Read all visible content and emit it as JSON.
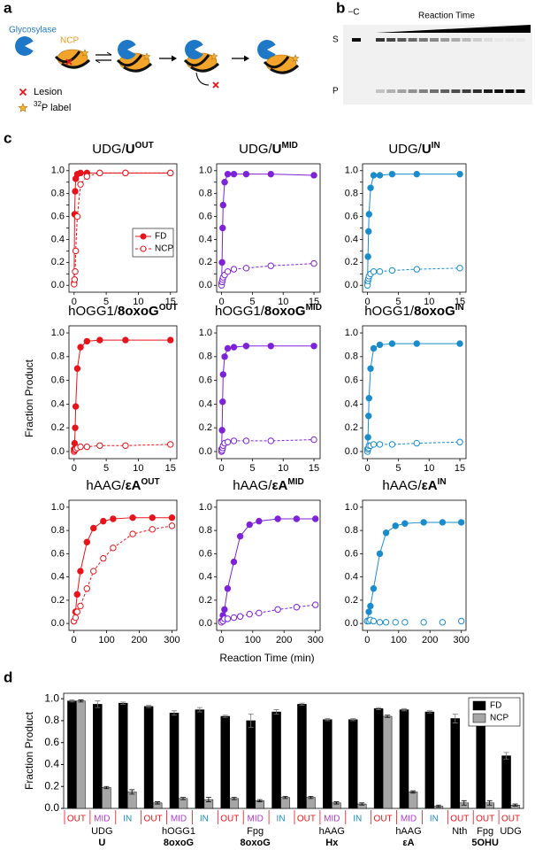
{
  "panel_a": {
    "label": "a",
    "enzyme": "Glycosylase",
    "substrate": "NCP",
    "legend": {
      "lesion": "Lesion",
      "isotope": "32",
      "label": "P label"
    }
  },
  "panel_b": {
    "label": "b",
    "control": "−C",
    "time": "Reaction Time",
    "substrate": "S",
    "product": "P"
  },
  "panel_c": {
    "label": "c",
    "ylabel": "Fraction Product",
    "xlabel": "Reaction Time (min)"
  },
  "panel_d": {
    "label": "d"
  },
  "chart_data": [
    {
      "type": "line",
      "title": {
        "prefix": "UDG/",
        "lesion": "U",
        "position": "OUT"
      },
      "color": "#e8141b",
      "x": [
        0,
        0.08,
        0.17,
        0.25,
        0.5,
        1,
        2,
        4,
        8,
        15
      ],
      "xlim": [
        -0.8,
        16
      ],
      "xticks": [
        0,
        5,
        10,
        15
      ],
      "ylim": [
        -0.06,
        1.06
      ],
      "yticks": [
        {
          "value": 0,
          "label": "0.0"
        },
        {
          "value": 0.1,
          "label": "0.1"
        },
        {
          "value": 0.2,
          "label": "0.2"
        },
        {
          "value": 0.3,
          "label": "0.3"
        },
        {
          "value": 0.4,
          "label": "0.4"
        },
        {
          "value": 0.5,
          "label": "0.5"
        },
        {
          "value": 0.6,
          "label": "0.6"
        },
        {
          "value": 0.7,
          "label": "0.7"
        },
        {
          "value": 0.8,
          "label": "0.8"
        },
        {
          "value": 0.9,
          "label": "0.9"
        },
        {
          "value": 1,
          "label": "1.0"
        }
      ],
      "legend": "lower right",
      "series": [
        {
          "name": "FD",
          "marker": "filled",
          "linestyle": "solid",
          "values": [
            0.02,
            0.62,
            0.82,
            0.93,
            0.97,
            0.98,
            0.98,
            0.98,
            0.98,
            0.98
          ]
        },
        {
          "name": "NCP",
          "marker": "open",
          "linestyle": "dashed",
          "values": [
            0.01,
            0.05,
            0.12,
            0.3,
            0.6,
            0.88,
            0.95,
            0.98,
            0.98,
            0.98
          ]
        }
      ]
    },
    {
      "type": "line",
      "title": {
        "prefix": "UDG/",
        "lesion": "U",
        "position": "MID"
      },
      "color": "#7d22d8",
      "x": [
        0,
        0.08,
        0.17,
        0.25,
        0.5,
        1,
        2,
        4,
        8,
        15
      ],
      "xlim": [
        -0.8,
        16
      ],
      "xticks": [
        0,
        5,
        10,
        15
      ],
      "ylim": [
        -0.06,
        1.06
      ],
      "yticks": [
        {
          "value": 0,
          "label": "0.0"
        },
        {
          "value": 0.1,
          "label": "0.1"
        },
        {
          "value": 0.2,
          "label": "0.2"
        },
        {
          "value": 0.3,
          "label": "0.3"
        },
        {
          "value": 0.4,
          "label": "0.4"
        },
        {
          "value": 0.5,
          "label": "0.5"
        },
        {
          "value": 0.6,
          "label": "0.6"
        },
        {
          "value": 0.7,
          "label": "0.7"
        },
        {
          "value": 0.8,
          "label": "0.8"
        },
        {
          "value": 0.9,
          "label": "0.9"
        },
        {
          "value": 1,
          "label": "1.0"
        }
      ],
      "series": [
        {
          "marker": "filled",
          "linestyle": "solid",
          "values": [
            0.02,
            0.2,
            0.5,
            0.7,
            0.9,
            0.97,
            0.97,
            0.97,
            0.97,
            0.96
          ]
        },
        {
          "marker": "open",
          "linestyle": "dashed",
          "values": [
            0,
            0.03,
            0.05,
            0.07,
            0.09,
            0.12,
            0.14,
            0.15,
            0.17,
            0.19
          ]
        }
      ]
    },
    {
      "type": "line",
      "title": {
        "prefix": "UDG/",
        "lesion": "U",
        "position": "IN"
      },
      "color": "#1a8ccc",
      "x": [
        0,
        0.08,
        0.17,
        0.25,
        0.5,
        1,
        2,
        4,
        8,
        15
      ],
      "xlim": [
        -0.8,
        16
      ],
      "xticks": [
        0,
        5,
        10,
        15
      ],
      "ylim": [
        -0.06,
        1.06
      ],
      "yticks": [
        {
          "value": 0,
          "label": "0.0"
        },
        {
          "value": 0.1,
          "label": "0.1"
        },
        {
          "value": 0.2,
          "label": "0.2"
        },
        {
          "value": 0.3,
          "label": "0.3"
        },
        {
          "value": 0.4,
          "label": "0.4"
        },
        {
          "value": 0.5,
          "label": "0.5"
        },
        {
          "value": 0.6,
          "label": "0.6"
        },
        {
          "value": 0.7,
          "label": "0.7"
        },
        {
          "value": 0.8,
          "label": "0.8"
        },
        {
          "value": 0.9,
          "label": "0.9"
        },
        {
          "value": 1,
          "label": "1.0"
        }
      ],
      "series": [
        {
          "marker": "filled",
          "linestyle": "solid",
          "values": [
            0.03,
            0.25,
            0.47,
            0.62,
            0.85,
            0.96,
            0.96,
            0.97,
            0.97,
            0.97
          ]
        },
        {
          "marker": "open",
          "linestyle": "dashed",
          "values": [
            0,
            0.04,
            0.06,
            0.08,
            0.1,
            0.12,
            0.12,
            0.13,
            0.14,
            0.15
          ]
        }
      ]
    },
    {
      "type": "line",
      "title": {
        "prefix": "hOGG1/",
        "lesion": "8oxoG",
        "position": "OUT"
      },
      "color": "#e8141b",
      "x": [
        0,
        0.08,
        0.17,
        0.25,
        0.5,
        1,
        2,
        4,
        8,
        15
      ],
      "xlim": [
        -0.8,
        16
      ],
      "xticks": [
        0,
        5,
        10,
        15
      ],
      "ylim": [
        -0.06,
        1.06
      ],
      "yticks": [
        {
          "value": 0,
          "label": "0.0"
        },
        {
          "value": 0.2,
          "label": "0.2"
        },
        {
          "value": 0.4,
          "label": "0.4"
        },
        {
          "value": 0.6,
          "label": "0.6"
        },
        {
          "value": 0.8,
          "label": "0.8"
        },
        {
          "value": 1,
          "label": "1.0"
        }
      ],
      "series": [
        {
          "marker": "filled",
          "linestyle": "solid",
          "values": [
            0.02,
            0.07,
            0.2,
            0.38,
            0.7,
            0.88,
            0.93,
            0.94,
            0.94,
            0.94
          ]
        },
        {
          "marker": "open",
          "linestyle": "dashed",
          "values": [
            0,
            0.01,
            0.02,
            0.02,
            0.03,
            0.04,
            0.04,
            0.05,
            0.05,
            0.06
          ]
        }
      ]
    },
    {
      "type": "line",
      "title": {
        "prefix": "hOGG1/",
        "lesion": "8oxoG",
        "position": "MID"
      },
      "color": "#7d22d8",
      "x": [
        0,
        0.08,
        0.17,
        0.25,
        0.5,
        1,
        2,
        4,
        8,
        15
      ],
      "xlim": [
        -0.8,
        16
      ],
      "xticks": [
        0,
        5,
        10,
        15
      ],
      "ylim": [
        -0.06,
        1.06
      ],
      "yticks": [
        {
          "value": 0,
          "label": "0.0"
        },
        {
          "value": 0.2,
          "label": "0.2"
        },
        {
          "value": 0.4,
          "label": "0.4"
        },
        {
          "value": 0.6,
          "label": "0.6"
        },
        {
          "value": 0.8,
          "label": "0.8"
        },
        {
          "value": 1,
          "label": "1.0"
        }
      ],
      "series": [
        {
          "marker": "filled",
          "linestyle": "solid",
          "values": [
            0.02,
            0.18,
            0.42,
            0.65,
            0.8,
            0.87,
            0.88,
            0.89,
            0.89,
            0.89
          ]
        },
        {
          "marker": "open",
          "linestyle": "dashed",
          "values": [
            0,
            0.01,
            0.03,
            0.05,
            0.07,
            0.08,
            0.09,
            0.09,
            0.09,
            0.1
          ]
        }
      ]
    },
    {
      "type": "line",
      "title": {
        "prefix": "hOGG1/",
        "lesion": "8oxoG",
        "position": "IN"
      },
      "color": "#1a8ccc",
      "x": [
        0,
        0.08,
        0.17,
        0.25,
        0.5,
        1,
        2,
        4,
        8,
        15
      ],
      "xlim": [
        -0.8,
        16
      ],
      "xticks": [
        0,
        5,
        10,
        15
      ],
      "ylim": [
        -0.06,
        1.06
      ],
      "yticks": [
        {
          "value": 0,
          "label": "0.0"
        },
        {
          "value": 0.2,
          "label": "0.2"
        },
        {
          "value": 0.4,
          "label": "0.4"
        },
        {
          "value": 0.6,
          "label": "0.6"
        },
        {
          "value": 0.8,
          "label": "0.8"
        },
        {
          "value": 1,
          "label": "1.0"
        }
      ],
      "series": [
        {
          "marker": "filled",
          "linestyle": "solid",
          "values": [
            0.02,
            0.12,
            0.3,
            0.45,
            0.7,
            0.87,
            0.9,
            0.91,
            0.91,
            0.91
          ]
        },
        {
          "marker": "open",
          "linestyle": "dashed",
          "values": [
            0,
            0.02,
            0.03,
            0.05,
            0.05,
            0.06,
            0.06,
            0.06,
            0.07,
            0.08
          ]
        }
      ]
    },
    {
      "type": "line",
      "title": {
        "prefix": "hAAG/",
        "lesion": "εA",
        "position": "OUT"
      },
      "color": "#e8141b",
      "x": [
        0,
        5,
        10,
        20,
        40,
        60,
        90,
        120,
        180,
        240,
        300
      ],
      "xlim": [
        -15,
        315
      ],
      "xticks": [
        0,
        100,
        200,
        300
      ],
      "ylim": [
        -0.06,
        1.06
      ],
      "yticks": [
        {
          "value": 0,
          "label": "0.0"
        },
        {
          "value": 0.2,
          "label": "0.2"
        },
        {
          "value": 0.4,
          "label": "0.4"
        },
        {
          "value": 0.6,
          "label": "0.6"
        },
        {
          "value": 0.8,
          "label": "0.8"
        },
        {
          "value": 1,
          "label": "1.0"
        }
      ],
      "series": [
        {
          "marker": "filled",
          "linestyle": "solid",
          "values": [
            0.02,
            0.1,
            0.25,
            0.45,
            0.7,
            0.82,
            0.88,
            0.9,
            0.91,
            0.91,
            0.91
          ]
        },
        {
          "marker": "open",
          "linestyle": "dashed",
          "values": [
            0.02,
            0.05,
            0.1,
            0.15,
            0.3,
            0.45,
            0.56,
            0.65,
            0.77,
            0.81,
            0.84
          ]
        }
      ]
    },
    {
      "type": "line",
      "title": {
        "prefix": "hAAG/",
        "lesion": "εA",
        "position": "MID"
      },
      "color": "#7d22d8",
      "x": [
        0,
        5,
        10,
        20,
        40,
        60,
        90,
        120,
        180,
        240,
        300
      ],
      "xlim": [
        -15,
        315
      ],
      "xticks": [
        0,
        100,
        200,
        300
      ],
      "ylim": [
        -0.06,
        1.06
      ],
      "yticks": [
        {
          "value": 0,
          "label": "0.0"
        },
        {
          "value": 0.2,
          "label": "0.2"
        },
        {
          "value": 0.4,
          "label": "0.4"
        },
        {
          "value": 0.6,
          "label": "0.6"
        },
        {
          "value": 0.8,
          "label": "0.8"
        },
        {
          "value": 1,
          "label": "1.0"
        }
      ],
      "series": [
        {
          "marker": "filled",
          "linestyle": "solid",
          "values": [
            0.02,
            0.07,
            0.12,
            0.3,
            0.53,
            0.75,
            0.85,
            0.88,
            0.9,
            0.9,
            0.9
          ]
        },
        {
          "marker": "open",
          "linestyle": "dashed",
          "values": [
            0.01,
            0.02,
            0.04,
            0.04,
            0.05,
            0.06,
            0.08,
            0.09,
            0.12,
            0.14,
            0.16
          ]
        }
      ]
    },
    {
      "type": "line",
      "title": {
        "prefix": "hAAG/",
        "lesion": "εA",
        "position": "IN"
      },
      "color": "#1a8ccc",
      "x": [
        0,
        5,
        10,
        20,
        40,
        60,
        90,
        120,
        180,
        240,
        300
      ],
      "xlim": [
        -15,
        315
      ],
      "xticks": [
        0,
        100,
        200,
        300
      ],
      "ylim": [
        -0.06,
        1.06
      ],
      "yticks": [
        {
          "value": 0,
          "label": "0.0"
        },
        {
          "value": 0.2,
          "label": "0.2"
        },
        {
          "value": 0.4,
          "label": "0.4"
        },
        {
          "value": 0.6,
          "label": "0.6"
        },
        {
          "value": 0.8,
          "label": "0.8"
        },
        {
          "value": 1,
          "label": "1.0"
        }
      ],
      "series": [
        {
          "marker": "filled",
          "linestyle": "solid",
          "values": [
            0.02,
            0.1,
            0.15,
            0.3,
            0.6,
            0.78,
            0.84,
            0.86,
            0.87,
            0.87,
            0.87
          ]
        },
        {
          "marker": "open",
          "linestyle": "none",
          "values": [
            0.02,
            0.02,
            0.03,
            0.02,
            0.01,
            0.01,
            0.01,
            0.01,
            0.01,
            0.01,
            0.02
          ]
        }
      ]
    },
    {
      "type": "bar",
      "ylabel": "Fraction Product",
      "ylim": [
        0,
        1.05
      ],
      "yticks": [
        {
          "value": 0,
          "label": "0.0"
        },
        {
          "value": 0.2,
          "label": "0.2"
        },
        {
          "value": 0.4,
          "label": "0.4"
        },
        {
          "value": 0.6,
          "label": "0.6"
        },
        {
          "value": 0.8,
          "label": "0.8"
        },
        {
          "value": 1,
          "label": "1.0"
        }
      ],
      "legend": "upper right",
      "category_colors": {
        "OUT": "#e8141b",
        "MID": "#b03ac8",
        "IN": "#1a8ccc"
      },
      "groups": [
        {
          "lesion": "U",
          "enzymes": [
            {
              "name": "UDG",
              "categories": [
                "OUT",
                "MID",
                "IN"
              ]
            }
          ]
        },
        {
          "lesion": "8oxoG",
          "enzymes": [
            {
              "name": "hOGG1",
              "categories": [
                "OUT",
                "MID",
                "IN"
              ]
            }
          ]
        },
        {
          "lesion": "8oxoG",
          "enzymes": [
            {
              "name": "Fpg",
              "categories": [
                "OUT",
                "MID",
                "IN"
              ]
            }
          ]
        },
        {
          "lesion": "Hx",
          "enzymes": [
            {
              "name": "hAAG",
              "categories": [
                "OUT",
                "MID",
                "IN"
              ]
            }
          ]
        },
        {
          "lesion": "εA",
          "enzymes": [
            {
              "name": "hAAG",
              "categories": [
                "OUT",
                "MID",
                "IN"
              ]
            }
          ]
        },
        {
          "lesion": "5OHU",
          "enzymes": [
            {
              "name": "Nth",
              "categories": [
                "OUT"
              ]
            },
            {
              "name": "Fpg",
              "categories": [
                "OUT"
              ]
            },
            {
              "name": "UDG",
              "categories": [
                "OUT"
              ]
            }
          ]
        }
      ],
      "series": [
        {
          "name": "FD",
          "color": "#000000",
          "values": [
            0.98,
            0.95,
            0.96,
            0.93,
            0.87,
            0.9,
            0.84,
            0.8,
            0.88,
            0.95,
            0.81,
            0.81,
            0.91,
            0.9,
            0.88,
            0.82,
            0.82,
            0.48
          ],
          "errors": [
            0.01,
            0.03,
            0.01,
            0.01,
            0.02,
            0.02,
            0.01,
            0.06,
            0.02,
            0.01,
            0.01,
            0.01,
            0.01,
            0.01,
            0.01,
            0.04,
            0.03,
            0.03
          ]
        },
        {
          "name": "NCP",
          "color": "#a6a6a6",
          "values": [
            0.98,
            0.19,
            0.15,
            0.05,
            0.09,
            0.08,
            0.09,
            0.07,
            0.1,
            0.1,
            0.05,
            0.04,
            0.84,
            0.15,
            0.02,
            0.05,
            0.05,
            0.03
          ],
          "errors": [
            0.01,
            0.01,
            0.02,
            0.01,
            0.01,
            0.02,
            0.01,
            0.01,
            0.01,
            0.01,
            0.01,
            0.01,
            0.01,
            0.01,
            0.01,
            0.02,
            0.02,
            0.01
          ]
        }
      ]
    }
  ]
}
